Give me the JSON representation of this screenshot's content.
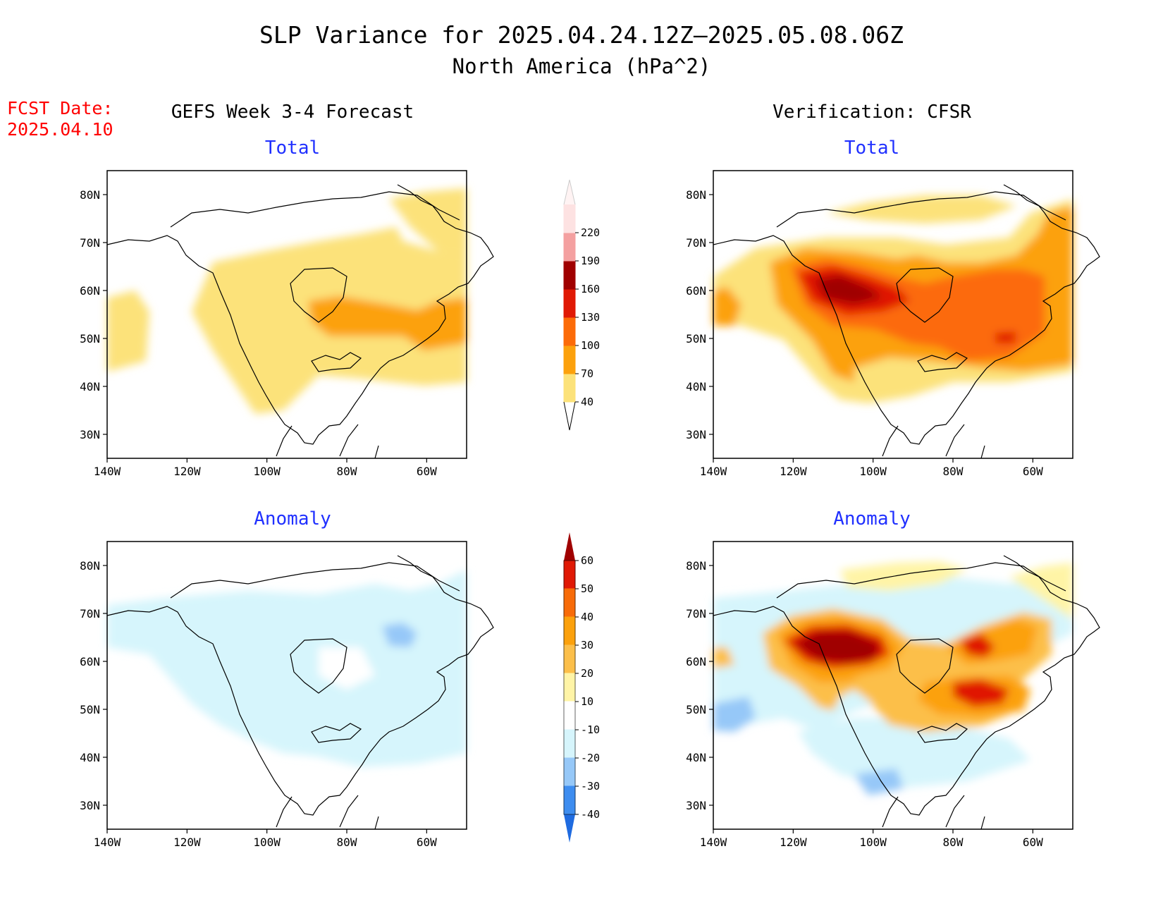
{
  "title": {
    "line1": "SLP Variance for 2025.04.24.12Z—2025.05.08.06Z",
    "line2": "North America (hPa^2)"
  },
  "fcst_date": {
    "label": "FCST Date:",
    "value": "2025.04.10"
  },
  "column_headers": {
    "left": "GEFS Week 3-4 Forecast",
    "right": "Verification: CFSR"
  },
  "panels": [
    {
      "id": "gefs-total",
      "title": "Total"
    },
    {
      "id": "cfsr-total",
      "title": "Total"
    },
    {
      "id": "gefs-anomaly",
      "title": "Anomaly"
    },
    {
      "id": "cfsr-anomaly",
      "title": "Anomaly"
    }
  ],
  "axes": {
    "lat_labels": [
      "80N",
      "70N",
      "60N",
      "50N",
      "40N",
      "30N"
    ],
    "lat_values": [
      80,
      70,
      60,
      50,
      40,
      30
    ],
    "lon_labels": [
      "140W",
      "120W",
      "100W",
      "80W",
      "60W"
    ],
    "lon_values": [
      -140,
      -120,
      -100,
      -80,
      -60
    ],
    "lon_range": [
      -140,
      -50
    ],
    "lat_range": [
      25,
      85
    ]
  },
  "colorbar_total": {
    "labels": [
      "40",
      "70",
      "100",
      "130",
      "160",
      "190",
      "220"
    ],
    "colors": [
      "#fce27a",
      "#fca10c",
      "#fc6b08",
      "#e01905",
      "#a00000",
      "#f4a0a0",
      "#fde2e2"
    ]
  },
  "colorbar_anomaly": {
    "labels": [
      "-40",
      "-30",
      "-20",
      "-10",
      "10",
      "20",
      "30",
      "40",
      "50",
      "60"
    ],
    "colors": [
      "#1f6be0",
      "#3d8df0",
      "#96c8f8",
      "#d6f5fc",
      "#ffffff",
      "#fff4a6",
      "#fcbf4a",
      "#fca10c",
      "#f86b08",
      "#e01905",
      "#a00000"
    ]
  },
  "colors": {
    "title": "#000000",
    "fcst": "#ff0000",
    "panel_title": "#2030ff",
    "coast": "#000000"
  }
}
